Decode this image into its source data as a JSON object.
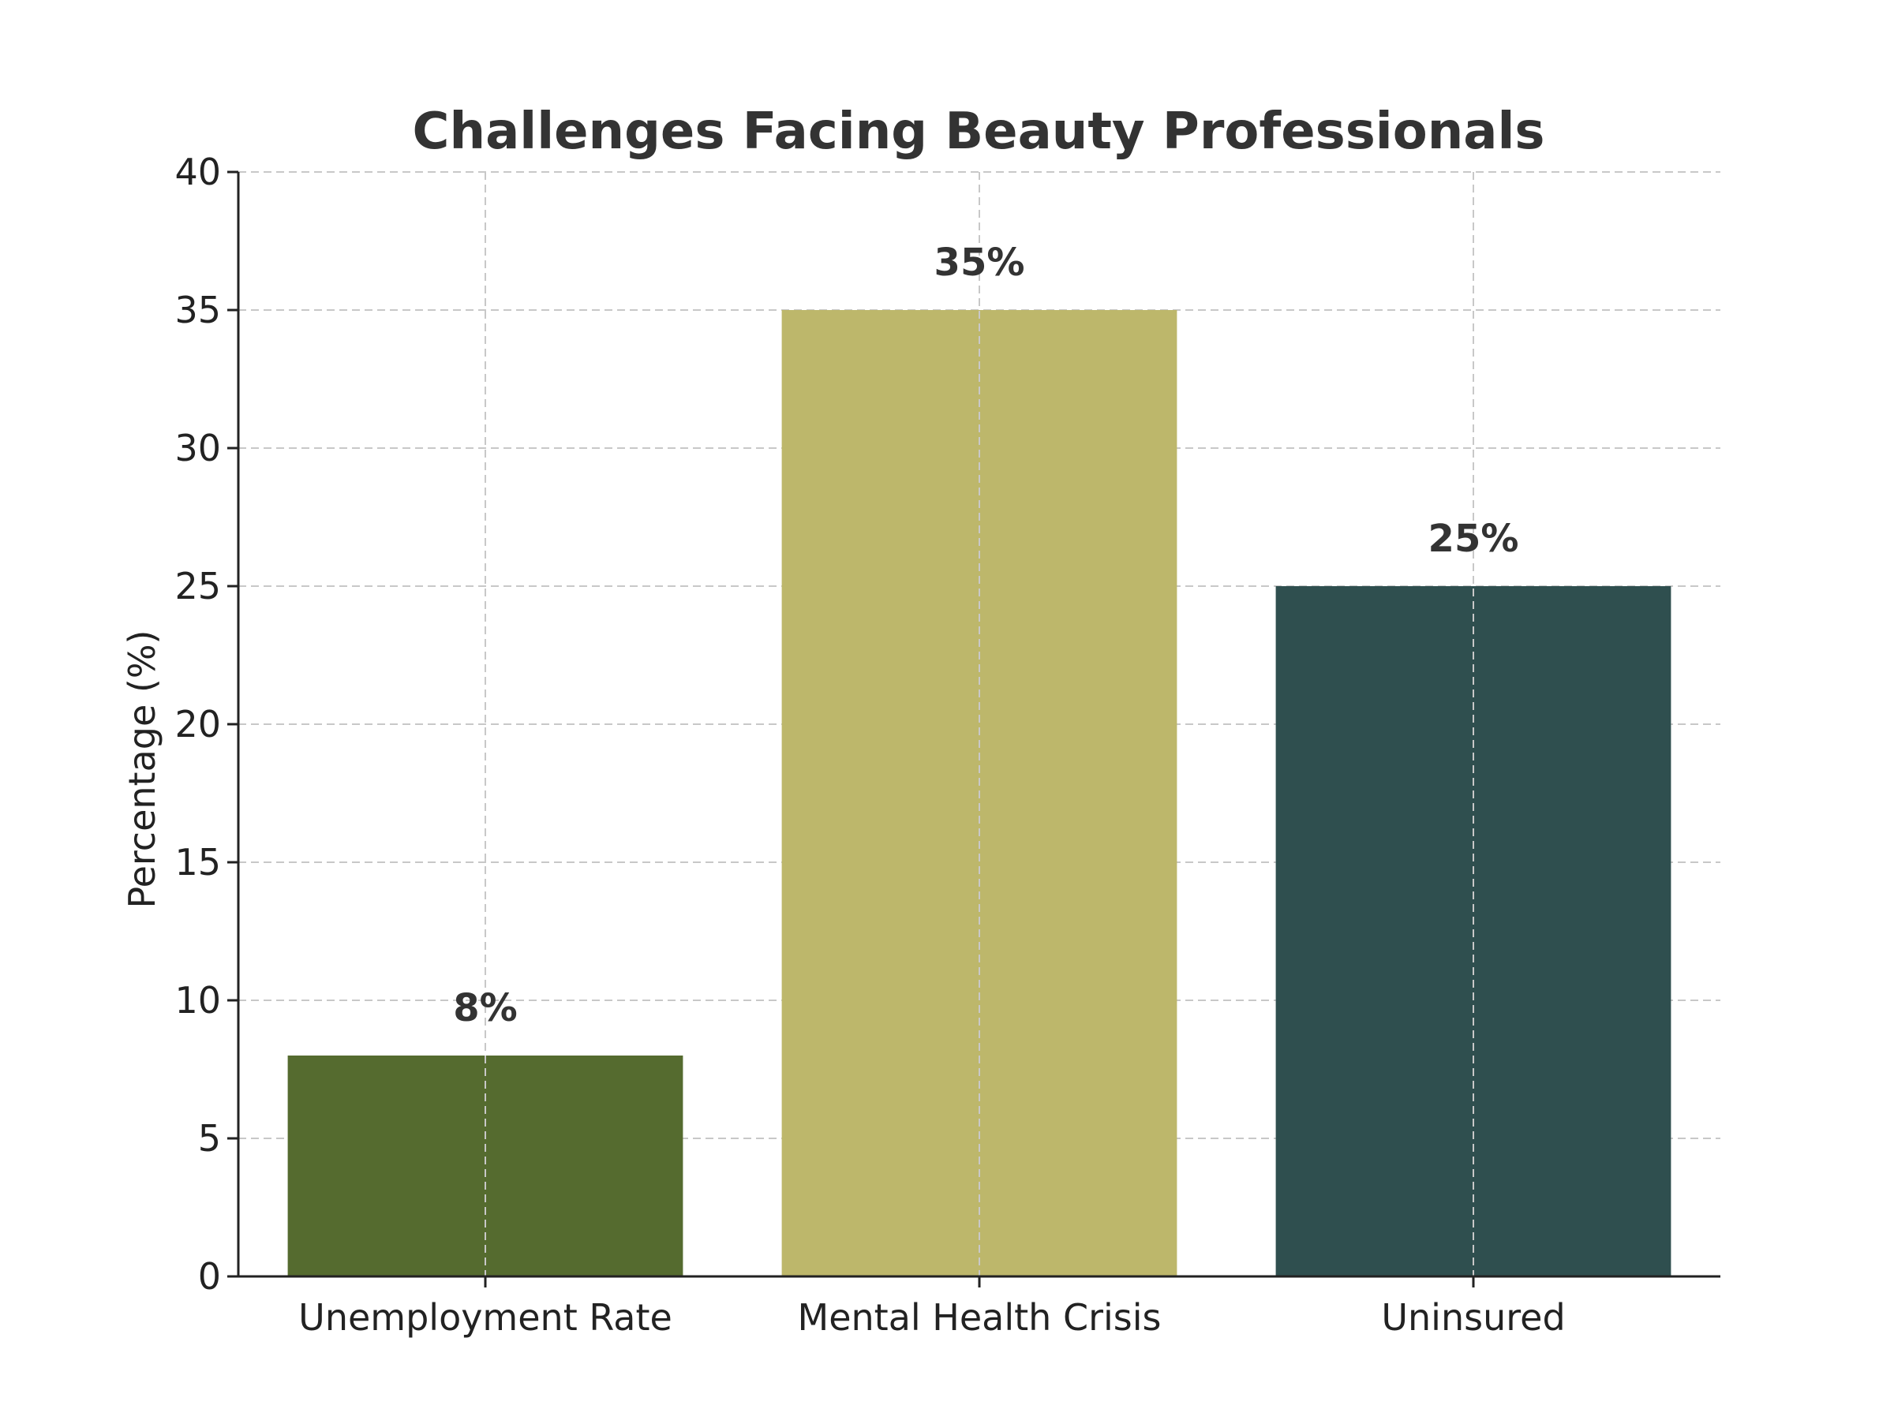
{
  "chart_data": {
    "type": "bar",
    "title": "Challenges Facing Beauty Professionals",
    "xlabel": "",
    "ylabel": "Percentage (%)",
    "ylim": [
      0,
      40
    ],
    "yticks": [
      0,
      5,
      10,
      15,
      20,
      25,
      30,
      35,
      40
    ],
    "categories": [
      "Unemployment Rate",
      "Mental Health Crisis",
      "Uninsured"
    ],
    "values": [
      8,
      35,
      25
    ],
    "data_labels": [
      "8%",
      "35%",
      "25%"
    ],
    "colors": [
      "#556b2f",
      "#bdb76b",
      "#2f4f4f"
    ],
    "grid": true,
    "legend": "none"
  }
}
